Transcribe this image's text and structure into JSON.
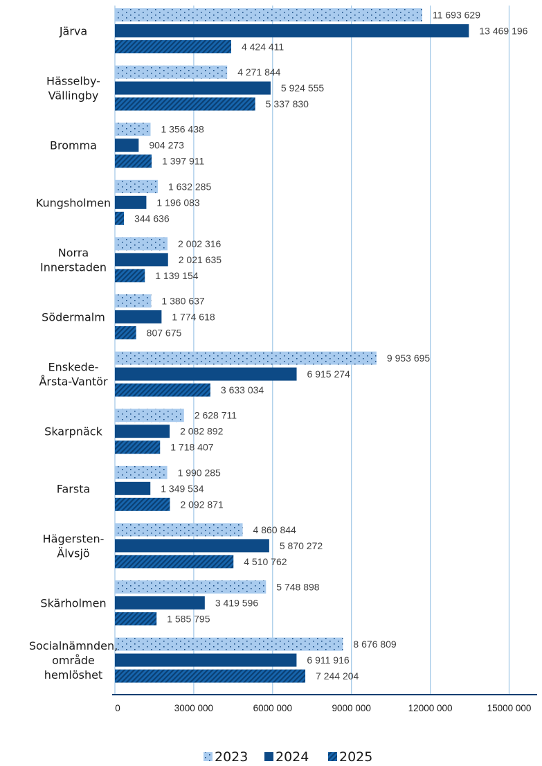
{
  "chart_data": {
    "type": "bar",
    "orientation": "horizontal",
    "categories": [
      "Järva",
      "Hässelby-\nVällingby",
      "Bromma",
      "Kungsholmen",
      "Norra\nInnerstaden",
      "Södermalm",
      "Enskede-\nÅrsta-Vantör",
      "Skarpnäck",
      "Farsta",
      "Hägersten-\nÄlvsjö",
      "Skärholmen",
      "Socialnämnden,\nområde\nhemlöshet"
    ],
    "series": [
      {
        "name": "2023",
        "color": "#a9cbee",
        "pattern": "dots",
        "values": [
          11693629,
          4271844,
          1356438,
          1632285,
          2002316,
          1380637,
          9953695,
          2628711,
          1990285,
          4860844,
          5748898,
          8676809
        ],
        "labels": [
          "11 693 629",
          "4 271 844",
          "1 356 438",
          "1 632 285",
          "2 002 316",
          "1 380 637",
          "9 953 695",
          "2 628 711",
          "1 990 285",
          "4 860 844",
          "5 748 898",
          "8 676 809"
        ]
      },
      {
        "name": "2024",
        "color": "#0d4a86",
        "pattern": "solid",
        "values": [
          13469196,
          5924555,
          904273,
          1196083,
          2021635,
          1774618,
          6915274,
          2082892,
          1349534,
          5870272,
          3419596,
          6911916
        ],
        "labels": [
          "13 469 196",
          "5 924 555",
          "904 273",
          "1 196 083",
          "2 021 635",
          "1 774 618",
          "6 915 274",
          "2 082 892",
          "1 349 534",
          "5 870 272",
          "3 419 596",
          "6 911 916"
        ]
      },
      {
        "name": "2025",
        "color": "#1765ad",
        "pattern": "diagonal",
        "values": [
          4424411,
          5337830,
          1397911,
          344636,
          1139154,
          807675,
          3633034,
          1718407,
          2092871,
          4510762,
          1585795,
          7244204
        ],
        "labels": [
          "4 424 411",
          "5 337 830",
          "1 397 911",
          "344 636",
          "1 139 154",
          "807 675",
          "3 633 034",
          "1 718 407",
          "2 092 871",
          "4 510 762",
          "1 585 795",
          "7 244 204"
        ]
      }
    ],
    "xlim": [
      0,
      16000000
    ],
    "xticks": [
      0,
      3000000,
      6000000,
      9000000,
      12000000,
      15000000
    ],
    "xtick_labels": [
      "0",
      "3000 000",
      "6000 000",
      "9000 000",
      "12000 000",
      "15000 000"
    ],
    "grid": "vertical",
    "legend": "bottom",
    "title": "",
    "xlabel": "",
    "ylabel": ""
  }
}
